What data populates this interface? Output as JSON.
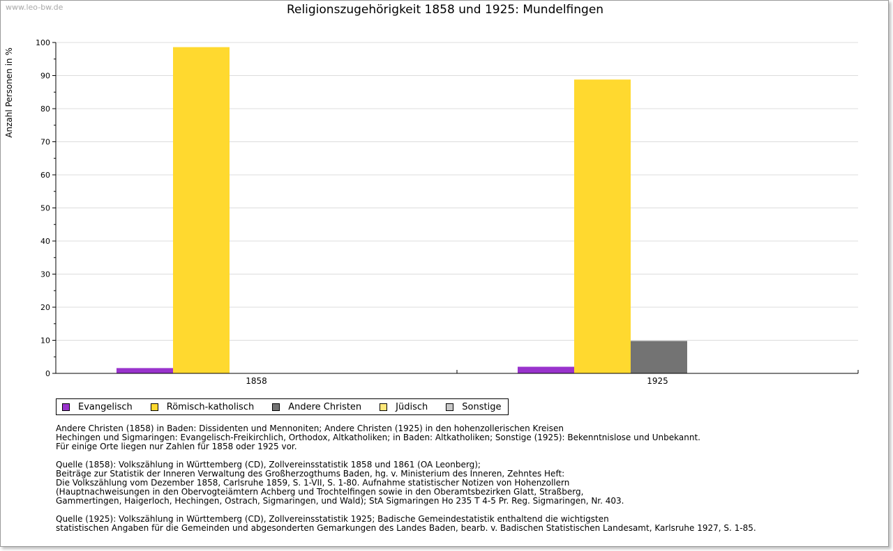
{
  "watermark": "www.leo-bw.de",
  "chart_data": {
    "type": "bar",
    "title": "Religionszugehörigkeit 1858 und 1925: Mundelfingen",
    "xlabel": "",
    "ylabel": "Anzahl Personen in %",
    "ylim": [
      0,
      100
    ],
    "yticks": [
      "0",
      "10",
      "20",
      "30",
      "40",
      "50",
      "60",
      "70",
      "80",
      "90",
      "100"
    ],
    "grid": true,
    "categories": [
      "1858",
      "1925"
    ],
    "series": [
      {
        "name": "Evangelisch",
        "color": "#9933cc",
        "values": [
          1.6,
          2.0
        ]
      },
      {
        "name": "Römisch-katholisch",
        "color": "#ffd92f",
        "values": [
          98.6,
          88.8
        ]
      },
      {
        "name": "Andere Christen",
        "color": "#737373",
        "values": [
          0,
          9.8
        ]
      },
      {
        "name": "Jüdisch",
        "color": "#ffe87a",
        "values": [
          0,
          0
        ]
      },
      {
        "name": "Sonstige",
        "color": "#c8c8c8",
        "values": [
          0,
          0
        ]
      }
    ],
    "legend_placement": "bottom"
  },
  "notes": [
    [
      "Andere Christen (1858) in Baden: Dissidenten und Mennoniten; Andere Christen (1925) in den hohenzollerischen Kreisen",
      "Hechingen und Sigmaringen: Evangelisch-Freikirchlich, Orthodox, Altkatholiken; in Baden: Altkatholiken; Sonstige (1925): Bekenntnislose und Unbekannt.",
      "Für einige Orte liegen nur Zahlen für 1858 oder 1925 vor."
    ],
    [
      "Quelle (1858): Volkszählung in Württemberg (CD), Zollvereinsstatistik 1858 und 1861 (OA Leonberg);",
      "Beiträge zur Statistik der Inneren Verwaltung des Großherzogthums Baden, hg. v. Ministerium des Inneren, Zehntes Heft:",
      "Die Volkszählung vom Dezember 1858, Carlsruhe 1859, S. 1-VII, S. 1-80. Aufnahme statistischer Notizen von Hohenzollern",
      "(Hauptnachweisungen in den Obervogteiämtern Achberg und Trochtelfingen sowie in den Oberamtsbezirken Glatt, Straßberg,",
      "Gammertingen, Haigerloch, Hechingen, Ostrach, Sigmaringen, und Wald); StA Sigmaringen Ho 235 T 4-5 Pr. Reg. Sigmaringen, Nr. 403."
    ],
    [
      "Quelle (1925): Volkszählung in Württemberg (CD), Zollvereinsstatistik 1925; Badische Gemeindestatistik enthaltend die wichtigsten",
      "statistischen Angaben für die Gemeinden und abgesonderten Gemarkungen des Landes Baden, bearb. v. Badischen Statistischen Landesamt, Karlsruhe 1927, S. 1-85."
    ]
  ]
}
